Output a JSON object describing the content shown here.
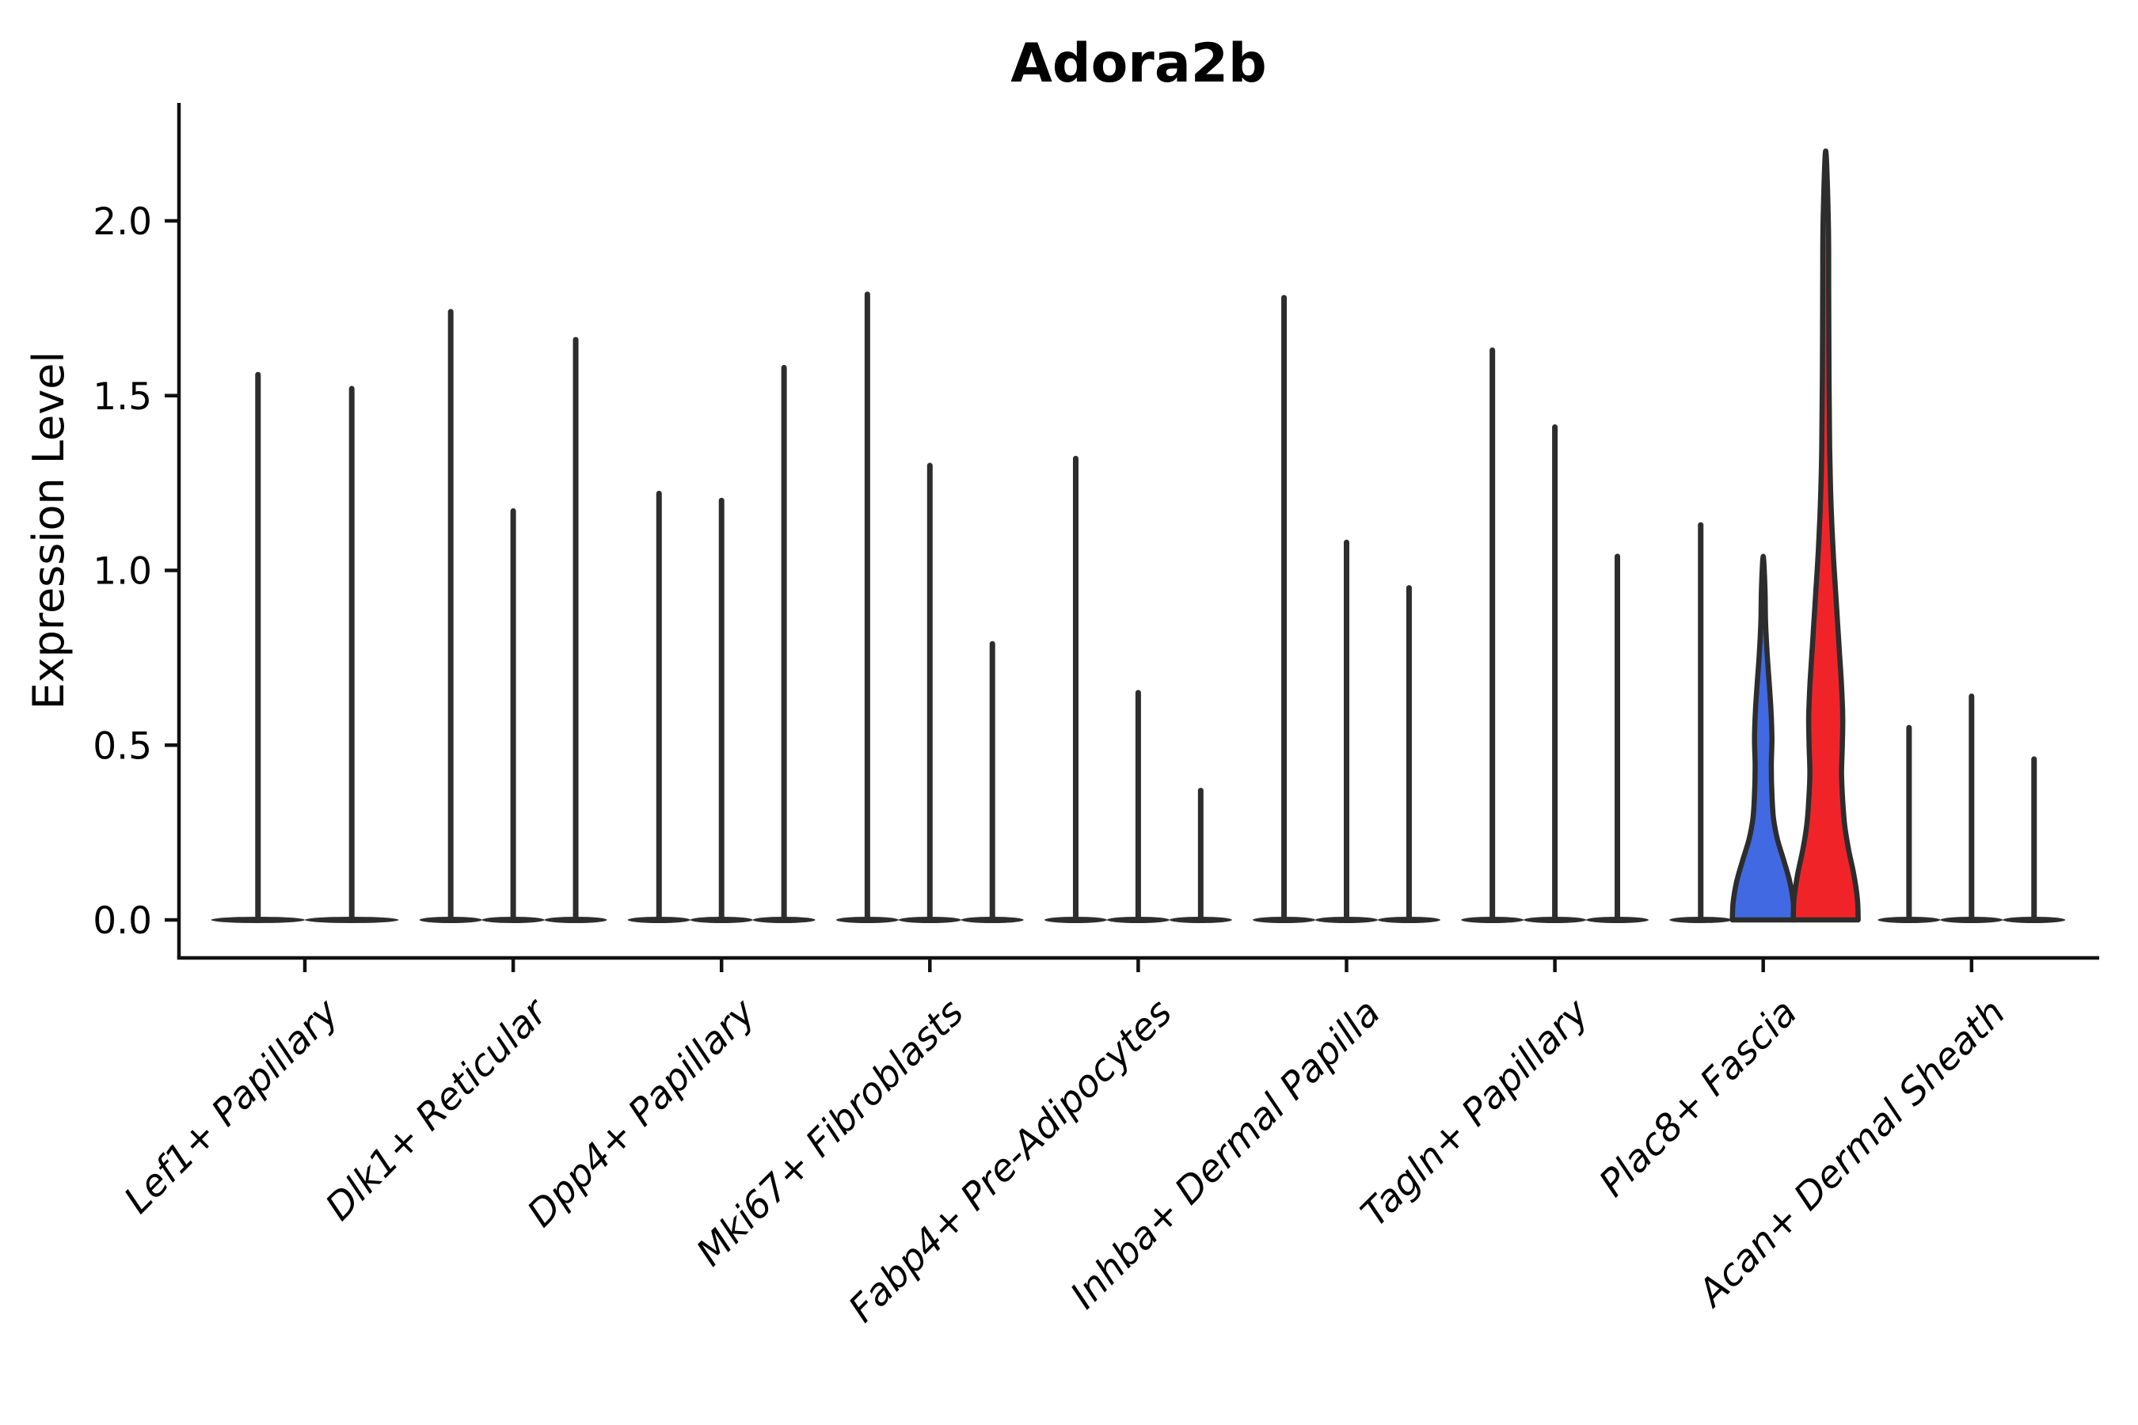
{
  "title": "Adora2b",
  "ylabel": "Expression Level",
  "chart_data": {
    "type": "violin",
    "title": "Adora2b",
    "xlabel": "",
    "ylabel": "Expression Level",
    "ylim": [
      -0.11,
      2.34
    ],
    "yticks": [
      "0.0",
      "0.5",
      "1.0",
      "1.5",
      "2.0"
    ],
    "ytick_values": [
      0.0,
      0.5,
      1.0,
      1.5,
      2.0
    ],
    "grid": false,
    "legend": false,
    "colors": {
      "stroke": "#2d2d2d",
      "axis": "#111111",
      "blue_fill": "#4169E1",
      "red_fill": "#F02428"
    },
    "categories": [
      {
        "label": "Lef1+ Papillary",
        "violins": [
          {
            "max": 1.56
          },
          {
            "max": 1.52
          }
        ]
      },
      {
        "label": "Dlk1+ Reticular",
        "violins": [
          {
            "max": 1.74
          },
          {
            "max": 1.17
          },
          {
            "max": 1.66
          }
        ]
      },
      {
        "label": "Dpp4+ Papillary",
        "violins": [
          {
            "max": 1.22
          },
          {
            "max": 1.2
          },
          {
            "max": 1.58
          }
        ]
      },
      {
        "label": "Mki67+ Fibroblasts",
        "violins": [
          {
            "max": 1.79
          },
          {
            "max": 1.3
          },
          {
            "max": 0.79
          }
        ]
      },
      {
        "label": "Fabp4+ Pre-Adipocytes",
        "violins": [
          {
            "max": 1.32
          },
          {
            "max": 0.65
          },
          {
            "max": 0.37
          }
        ]
      },
      {
        "label": "Inhba+ Dermal Papilla",
        "violins": [
          {
            "max": 1.78
          },
          {
            "max": 1.08
          },
          {
            "max": 0.95
          }
        ]
      },
      {
        "label": "Tagln+ Papillary",
        "violins": [
          {
            "max": 1.63
          },
          {
            "max": 1.41
          },
          {
            "max": 1.04
          }
        ]
      },
      {
        "label": "Plac8+ Fascia",
        "violins": [
          {
            "max": 1.13
          },
          {
            "max": 1.04,
            "fill": "blue_fill",
            "profile": [
              [
                0,
                39
              ],
              [
                0.05,
                38
              ],
              [
                0.11,
                33.5
              ],
              [
                0.17,
                26
              ],
              [
                0.23,
                18
              ],
              [
                0.29,
                13
              ],
              [
                0.36,
                11
              ],
              [
                0.44,
                10.2
              ],
              [
                0.52,
                11
              ],
              [
                0.6,
                9.8
              ],
              [
                0.68,
                7.5
              ],
              [
                0.76,
                5
              ],
              [
                0.85,
                3
              ],
              [
                0.95,
                2.2
              ],
              [
                1.04,
                0
              ]
            ]
          },
          {
            "max": 2.2,
            "fill": "red_fill",
            "profile": [
              [
                0,
                41
              ],
              [
                0.06,
                40
              ],
              [
                0.13,
                35.5
              ],
              [
                0.2,
                29
              ],
              [
                0.27,
                24
              ],
              [
                0.34,
                21.5
              ],
              [
                0.42,
                20
              ],
              [
                0.5,
                21
              ],
              [
                0.58,
                21.5
              ],
              [
                0.67,
                20
              ],
              [
                0.76,
                17.5
              ],
              [
                0.85,
                15
              ],
              [
                0.94,
                12.5
              ],
              [
                1.03,
                10
              ],
              [
                1.12,
                8
              ],
              [
                1.22,
                6.3
              ],
              [
                1.35,
                5
              ],
              [
                1.55,
                4.2
              ],
              [
                1.8,
                3.8
              ],
              [
                2.0,
                3.3
              ],
              [
                2.2,
                0
              ]
            ]
          }
        ]
      },
      {
        "label": "Acan+ Dermal Sheath",
        "violins": [
          {
            "max": 0.55
          },
          {
            "max": 0.64
          },
          {
            "max": 0.46
          }
        ]
      }
    ]
  }
}
